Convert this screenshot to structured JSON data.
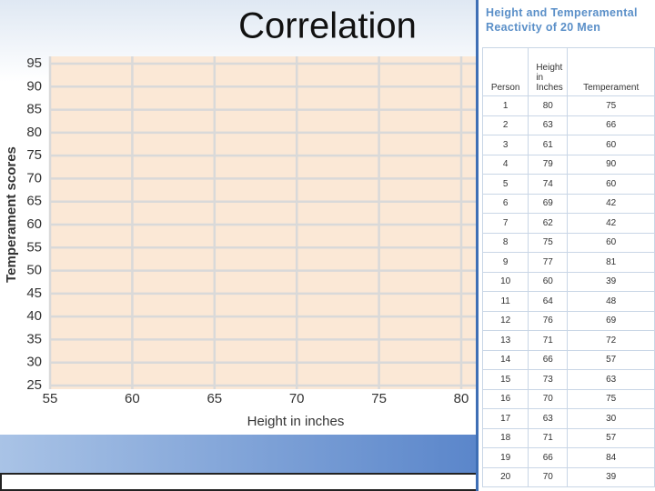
{
  "title": "Correlation",
  "chart_data": {
    "type": "scatter",
    "x_label": "Height in inches",
    "y_label": "Temperament  scores",
    "xlim": [
      55,
      80
    ],
    "xticks": [
      55,
      60,
      65,
      70,
      75,
      80
    ],
    "ylim": [
      25,
      95
    ],
    "yticks": [
      25,
      30,
      35,
      40,
      45,
      50,
      55,
      60,
      65,
      70,
      75,
      80,
      85,
      90,
      95
    ],
    "grid": true
  },
  "table": {
    "title": "Height and Temperamental Reactivity of 20 Men",
    "columns": [
      "Person",
      "Height in Inches",
      "Temperament"
    ],
    "rows": [
      [
        "1",
        "80",
        "75"
      ],
      [
        "2",
        "63",
        "66"
      ],
      [
        "3",
        "61",
        "60"
      ],
      [
        "4",
        "79",
        "90"
      ],
      [
        "5",
        "74",
        "60"
      ],
      [
        "6",
        "69",
        "42"
      ],
      [
        "7",
        "62",
        "42"
      ],
      [
        "8",
        "75",
        "60"
      ],
      [
        "9",
        "77",
        "81"
      ],
      [
        "10",
        "60",
        "39"
      ],
      [
        "11",
        "64",
        "48"
      ],
      [
        "12",
        "76",
        "69"
      ],
      [
        "13",
        "71",
        "72"
      ],
      [
        "14",
        "66",
        "57"
      ],
      [
        "15",
        "73",
        "63"
      ],
      [
        "16",
        "70",
        "75"
      ],
      [
        "17",
        "63",
        "30"
      ],
      [
        "18",
        "71",
        "57"
      ],
      [
        "19",
        "66",
        "84"
      ],
      [
        "20",
        "70",
        "39"
      ]
    ]
  }
}
